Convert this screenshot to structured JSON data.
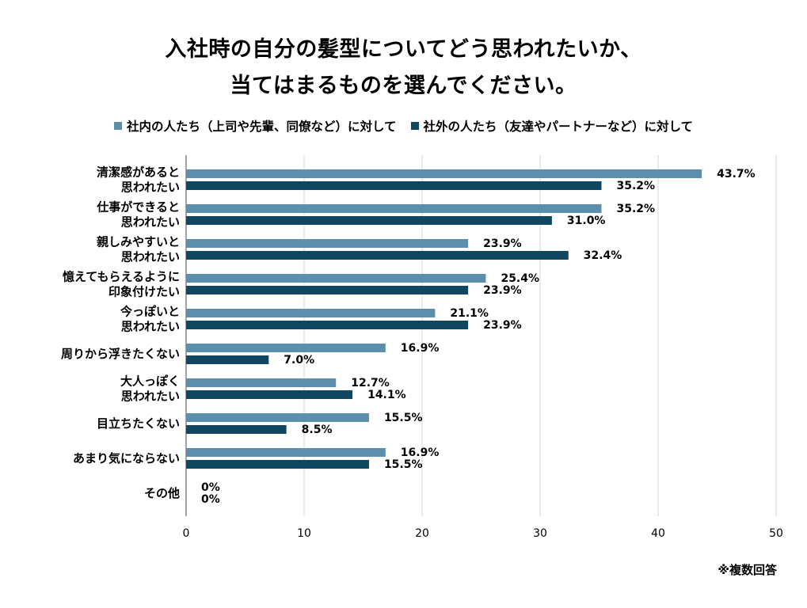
{
  "chart_data": {
    "type": "bar",
    "orientation": "horizontal",
    "title_lines": [
      "入社時の自分の髪型についてどう思われたいか、",
      "当てはまるものを選んでください。"
    ],
    "categories": [
      [
        "清潔感があると",
        "思われたい"
      ],
      [
        "仕事ができると",
        "思われたい"
      ],
      [
        "親しみやすいと",
        "思われたい"
      ],
      [
        "憶えてもらえるように",
        "印象付けたい"
      ],
      [
        "今っぽいと",
        "思われたい"
      ],
      [
        "周りから浮きたくない"
      ],
      [
        "大人っぽく",
        "思われたい"
      ],
      [
        "目立ちたくない"
      ],
      [
        "あまり気にならない"
      ],
      [
        "その他"
      ]
    ],
    "series": [
      {
        "name": "社内の人たち（上司や先輩、同僚など）に対して",
        "color": "#5b8fab",
        "values": [
          43.7,
          35.2,
          23.9,
          25.4,
          21.1,
          16.9,
          12.7,
          15.5,
          16.9,
          0
        ],
        "labels": [
          "43.7%",
          "35.2%",
          "23.9%",
          "25.4%",
          "21.1%",
          "16.9%",
          "12.7%",
          "15.5%",
          "16.9%",
          "0%"
        ]
      },
      {
        "name": "社外の人たち（友達やパートナーなど）に対して",
        "color": "#0f4660",
        "values": [
          35.2,
          31.0,
          32.4,
          23.9,
          23.9,
          7.0,
          14.1,
          8.5,
          15.5,
          0
        ],
        "labels": [
          "35.2%",
          "31.0%",
          "32.4%",
          "23.9%",
          "23.9%",
          "7.0%",
          "14.1%",
          "8.5%",
          "15.5%",
          "0%"
        ]
      }
    ],
    "xlim": [
      0,
      50
    ],
    "xticks": [
      0,
      10,
      20,
      30,
      40,
      50
    ],
    "xtick_labels": [
      "0",
      "10",
      "20",
      "30",
      "40",
      "50"
    ],
    "grid": true,
    "legend_position": "top"
  },
  "note": "※複数回答"
}
